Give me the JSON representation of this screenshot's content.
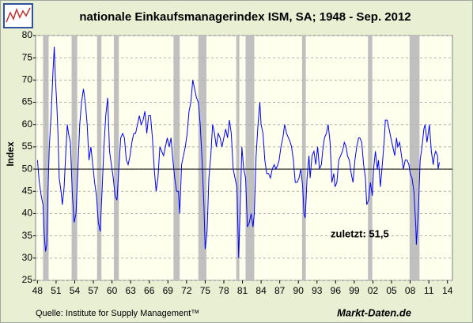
{
  "chart_data": {
    "type": "line",
    "title": "nationale Einkaufsmanagerindex ISM, SA; 1948 - Sep. 2012",
    "y_label": "Index",
    "annotation": "zuletzt: 51,5",
    "source": "Quelle: Institute for Supply Management™",
    "brand": "Markt-Daten.de",
    "grid": true,
    "reference_line": 50,
    "xlim": [
      1947.7,
      2014.8
    ],
    "xticks": [
      {
        "value": 1948,
        "label": "48"
      },
      {
        "value": 1951,
        "label": "51"
      },
      {
        "value": 1954,
        "label": "54"
      },
      {
        "value": 1957,
        "label": "57"
      },
      {
        "value": 1960,
        "label": "60"
      },
      {
        "value": 1963,
        "label": "63"
      },
      {
        "value": 1966,
        "label": "66"
      },
      {
        "value": 1969,
        "label": "69"
      },
      {
        "value": 1972,
        "label": "72"
      },
      {
        "value": 1975,
        "label": "75"
      },
      {
        "value": 1978,
        "label": "78"
      },
      {
        "value": 1981,
        "label": "81"
      },
      {
        "value": 1984,
        "label": "84"
      },
      {
        "value": 1987,
        "label": "87"
      },
      {
        "value": 1990,
        "label": "90"
      },
      {
        "value": 1993,
        "label": "93"
      },
      {
        "value": 1996,
        "label": "96"
      },
      {
        "value": 1999,
        "label": "99"
      },
      {
        "value": 2002,
        "label": "02"
      },
      {
        "value": 2005,
        "label": "05"
      },
      {
        "value": 2008,
        "label": "08"
      },
      {
        "value": 2011,
        "label": "11"
      },
      {
        "value": 2014,
        "label": "14"
      }
    ],
    "ylim": [
      25,
      80
    ],
    "yticks": [
      25,
      30,
      35,
      40,
      45,
      50,
      55,
      60,
      65,
      70,
      75,
      80
    ],
    "recessions": [
      [
        1948.9,
        1949.8
      ],
      [
        1953.5,
        1954.4
      ],
      [
        1957.6,
        1958.3
      ],
      [
        1960.3,
        1961.1
      ],
      [
        1969.9,
        1970.9
      ],
      [
        1973.9,
        1975.2
      ],
      [
        1980.0,
        1980.5
      ],
      [
        1981.5,
        1982.9
      ],
      [
        1990.6,
        1991.2
      ],
      [
        2001.2,
        2001.9
      ],
      [
        2007.9,
        2009.5
      ]
    ],
    "series": [
      {
        "name": "ISM",
        "color": "#0000ff",
        "x": [
          1948.0,
          1948.3,
          1948.6,
          1948.9,
          1949.1,
          1949.3,
          1949.5,
          1949.7,
          1949.9,
          1950.2,
          1950.5,
          1950.7,
          1950.9,
          1951.1,
          1951.3,
          1951.5,
          1951.8,
          1952.0,
          1952.3,
          1952.5,
          1952.8,
          1953.0,
          1953.3,
          1953.6,
          1953.9,
          1954.2,
          1954.5,
          1954.8,
          1955.1,
          1955.4,
          1955.7,
          1956.0,
          1956.3,
          1956.6,
          1956.9,
          1957.2,
          1957.5,
          1957.8,
          1958.1,
          1958.4,
          1958.7,
          1959.0,
          1959.3,
          1959.6,
          1959.9,
          1960.2,
          1960.5,
          1960.8,
          1961.1,
          1961.4,
          1961.7,
          1962.0,
          1962.3,
          1962.6,
          1962.9,
          1963.2,
          1963.5,
          1963.8,
          1964.1,
          1964.4,
          1964.7,
          1965.0,
          1965.3,
          1965.6,
          1965.9,
          1966.2,
          1966.5,
          1966.8,
          1967.1,
          1967.4,
          1967.7,
          1968.0,
          1968.3,
          1968.6,
          1968.9,
          1969.2,
          1969.5,
          1969.8,
          1970.1,
          1970.4,
          1970.7,
          1970.9,
          1971.2,
          1971.5,
          1971.8,
          1972.1,
          1972.4,
          1972.7,
          1973.0,
          1973.3,
          1973.6,
          1973.9,
          1974.2,
          1974.5,
          1974.8,
          1975.0,
          1975.3,
          1975.6,
          1975.9,
          1976.2,
          1976.5,
          1976.8,
          1977.1,
          1977.4,
          1977.7,
          1978.0,
          1978.3,
          1978.6,
          1978.9,
          1979.2,
          1979.5,
          1979.8,
          1980.1,
          1980.4,
          1980.7,
          1980.9,
          1981.2,
          1981.5,
          1981.8,
          1982.1,
          1982.4,
          1982.7,
          1982.9,
          1983.2,
          1983.5,
          1983.8,
          1984.0,
          1984.3,
          1984.6,
          1984.9,
          1985.2,
          1985.5,
          1985.8,
          1986.1,
          1986.4,
          1986.7,
          1986.9,
          1987.2,
          1987.5,
          1987.8,
          1988.1,
          1988.4,
          1988.7,
          1988.9,
          1989.2,
          1989.5,
          1989.8,
          1990.1,
          1990.4,
          1990.7,
          1990.9,
          1991.1,
          1991.4,
          1991.7,
          1991.9,
          1992.2,
          1992.5,
          1992.8,
          1993.1,
          1993.4,
          1993.7,
          1993.9,
          1994.2,
          1994.5,
          1994.8,
          1995.1,
          1995.4,
          1995.7,
          1995.9,
          1996.2,
          1996.5,
          1996.8,
          1997.1,
          1997.4,
          1997.7,
          1997.9,
          1998.2,
          1998.5,
          1998.8,
          1999.1,
          1999.4,
          1999.7,
          1999.9,
          2000.2,
          2000.5,
          2000.8,
          2001.0,
          2001.3,
          2001.6,
          2001.9,
          2002.1,
          2002.4,
          2002.7,
          2002.9,
          2003.2,
          2003.5,
          2003.8,
          2004.0,
          2004.3,
          2004.6,
          2004.9,
          2005.2,
          2005.5,
          2005.8,
          2006.0,
          2006.3,
          2006.6,
          2006.9,
          2007.2,
          2007.5,
          2007.8,
          2008.0,
          2008.3,
          2008.6,
          2008.9,
          2009.0,
          2009.3,
          2009.6,
          2009.9,
          2010.2,
          2010.4,
          2010.7,
          2010.9,
          2011.1,
          2011.4,
          2011.7,
          2011.9,
          2012.1,
          2012.4,
          2012.5,
          2012.7
        ],
        "values": [
          52,
          47,
          44,
          42,
          35,
          31.5,
          33,
          45,
          55,
          62,
          72,
          77.5,
          70,
          65,
          58,
          48,
          45,
          42,
          46,
          52,
          60,
          58,
          56,
          45,
          38,
          40,
          50,
          60,
          65,
          68,
          65,
          60,
          52,
          55,
          51,
          47,
          44,
          38,
          36,
          45,
          55,
          62,
          66,
          54,
          51,
          48,
          44,
          43,
          50,
          57,
          58,
          57,
          52,
          51,
          53,
          56,
          58,
          58,
          60,
          62,
          60,
          61,
          63,
          58,
          62,
          62,
          57,
          50,
          45,
          48,
          55,
          54,
          53,
          55,
          57,
          55,
          57,
          52,
          48,
          45,
          45,
          40,
          51,
          53,
          55,
          58,
          63,
          65,
          70,
          68,
          66,
          65,
          60,
          52,
          42,
          32,
          36,
          48,
          53,
          60,
          58,
          55,
          58,
          57,
          55,
          57,
          59,
          57,
          61,
          58,
          50,
          48,
          46,
          30,
          45,
          55,
          50,
          48,
          37,
          38,
          40,
          37,
          40,
          53,
          60,
          65,
          60,
          58,
          52,
          49,
          49,
          48,
          50,
          51,
          50,
          51,
          52,
          55,
          57,
          60,
          58,
          57,
          56,
          55,
          52,
          47,
          47,
          48,
          50,
          46,
          40,
          39,
          48,
          53,
          48,
          53,
          54,
          51,
          55,
          50,
          51,
          54,
          57,
          58,
          60,
          56,
          47,
          49,
          46,
          47,
          52,
          53,
          54,
          56,
          55,
          53,
          52,
          49,
          47,
          52,
          55,
          57,
          57,
          56,
          51,
          48,
          42,
          43,
          47,
          44,
          50,
          54,
          50,
          52,
          46,
          51,
          56,
          61,
          61,
          59,
          57,
          55,
          53,
          57,
          55,
          56,
          53,
          50,
          52,
          52,
          51,
          49,
          48,
          45,
          37,
          33,
          40,
          52,
          55,
          59,
          60,
          56,
          58,
          60,
          54,
          51,
          53,
          54,
          53,
          50,
          51.5
        ]
      }
    ]
  }
}
